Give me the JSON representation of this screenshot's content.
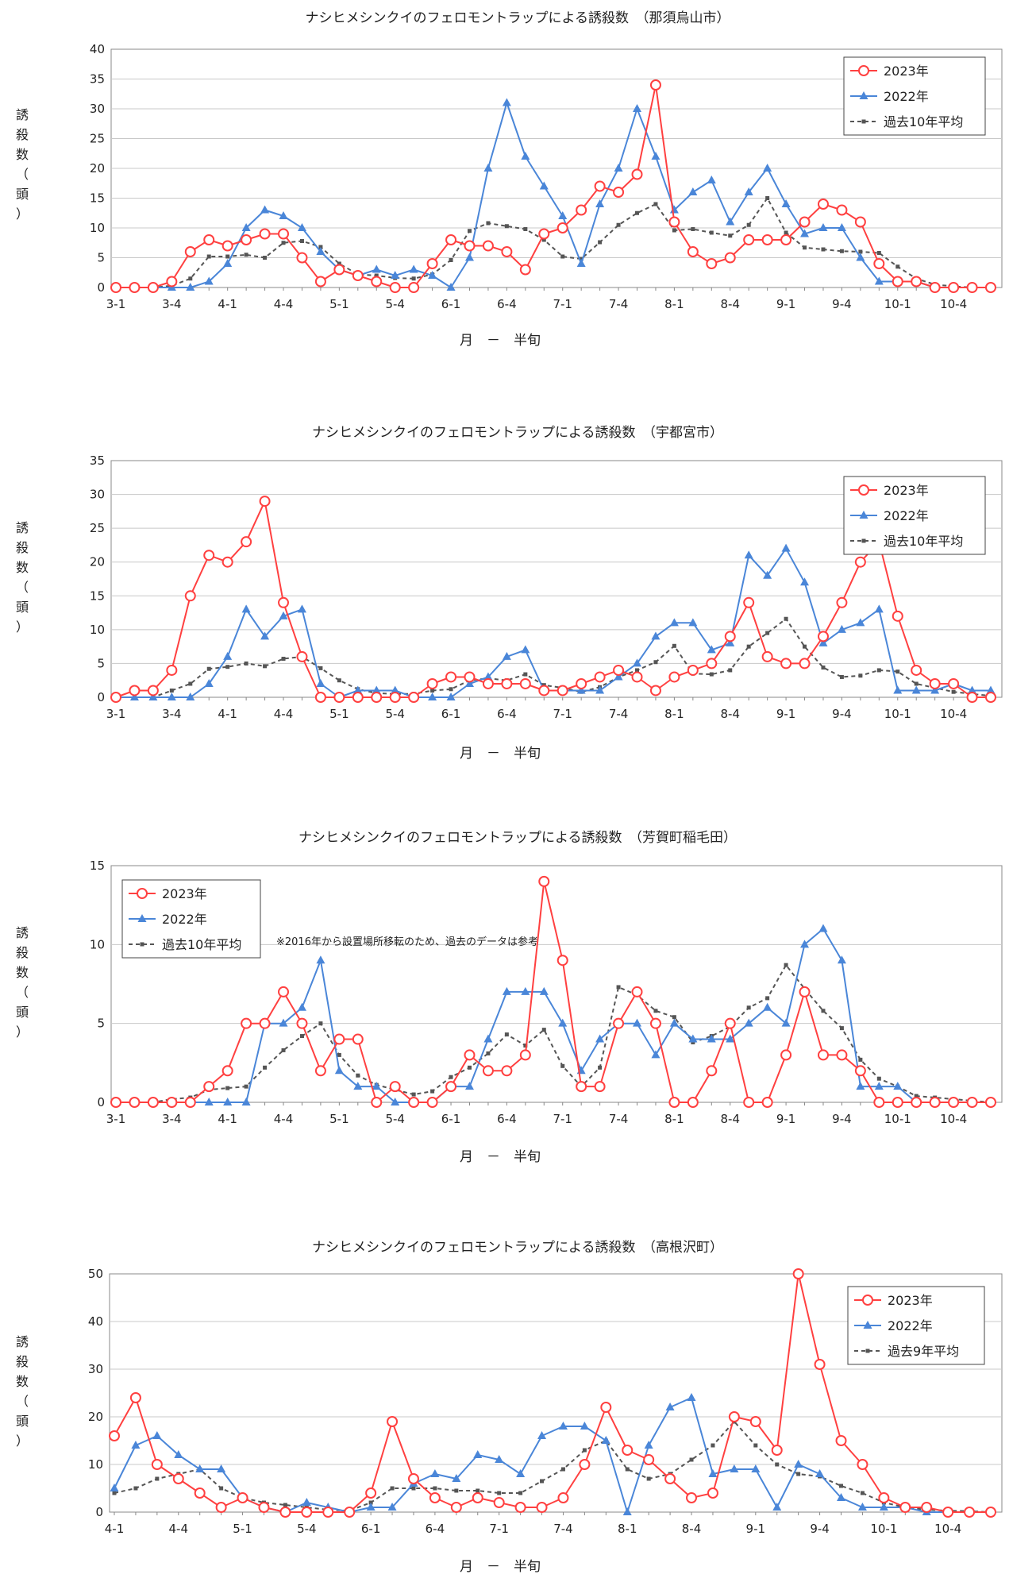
{
  "colors": {
    "s2023": "#ff4040",
    "s2022": "#4a86d8",
    "savg": "#555555",
    "grid": "#c8c8c8",
    "axis": "#888888"
  },
  "chart_data": [
    {
      "type": "line",
      "title": "ナシヒメシンクイのフェロモントラップによる誘殺数　（那須烏山市）",
      "xlabel": "月　－　半旬",
      "ylabel": [
        "誘",
        "殺",
        "数",
        "（",
        "頭",
        "）"
      ],
      "ylim": [
        0,
        40
      ],
      "yticks": [
        0,
        5,
        10,
        15,
        20,
        25,
        30,
        35,
        40
      ],
      "x_count": 48,
      "x_labels": [
        {
          "i": 0,
          "t": "3-1"
        },
        {
          "i": 3,
          "t": "3-4"
        },
        {
          "i": 6,
          "t": "4-1"
        },
        {
          "i": 9,
          "t": "4-4"
        },
        {
          "i": 12,
          "t": "5-1"
        },
        {
          "i": 15,
          "t": "5-4"
        },
        {
          "i": 18,
          "t": "6-1"
        },
        {
          "i": 21,
          "t": "6-4"
        },
        {
          "i": 24,
          "t": "7-1"
        },
        {
          "i": 27,
          "t": "7-4"
        },
        {
          "i": 30,
          "t": "8-1"
        },
        {
          "i": 33,
          "t": "8-4"
        },
        {
          "i": 36,
          "t": "9-1"
        },
        {
          "i": 39,
          "t": "9-4"
        },
        {
          "i": 42,
          "t": "10-1"
        },
        {
          "i": 45,
          "t": "10-4"
        }
      ],
      "legend": {
        "position": "top-right",
        "labels": [
          "2023年",
          "2022年",
          "過去10年平均"
        ]
      },
      "series": [
        {
          "name": "2023年",
          "key": "s2023",
          "marker": "circle",
          "values": [
            0,
            0,
            0,
            1,
            6,
            8,
            7,
            8,
            9,
            9,
            5,
            1,
            3,
            2,
            1,
            0,
            0,
            4,
            8,
            7,
            7,
            6,
            3,
            9,
            10,
            13,
            17,
            16,
            19,
            34,
            11,
            6,
            4,
            5,
            8,
            8,
            8,
            11,
            14,
            13,
            11,
            4,
            1,
            1,
            0,
            0,
            0,
            0
          ]
        },
        {
          "name": "2022年",
          "key": "s2022",
          "marker": "triangle",
          "values": [
            0,
            0,
            0,
            0,
            0,
            1,
            4,
            10,
            13,
            12,
            10,
            6,
            3,
            2,
            3,
            2,
            3,
            2,
            0,
            5,
            20,
            31,
            22,
            17,
            12,
            4,
            14,
            20,
            30,
            22,
            13,
            16,
            18,
            11,
            16,
            20,
            14,
            9,
            10,
            10,
            5,
            1,
            1,
            1,
            0,
            0,
            0,
            0
          ]
        },
        {
          "name": "過去10年平均",
          "key": "savg",
          "marker": "square",
          "values": [
            0,
            0,
            0,
            0.3,
            1.5,
            5.2,
            5.2,
            5.5,
            5,
            7.5,
            7.8,
            6.8,
            4,
            2.2,
            2,
            1.6,
            1.5,
            2.2,
            4.6,
            9.5,
            10.8,
            10.3,
            9.8,
            8,
            5.2,
            4.8,
            7.6,
            10.5,
            12.5,
            14,
            9.6,
            9.8,
            9.2,
            8.7,
            10.5,
            15,
            9.2,
            6.7,
            6.4,
            6.1,
            6,
            5.8,
            3.5,
            1.5,
            0.5,
            0.2,
            0,
            0
          ]
        }
      ]
    },
    {
      "type": "line",
      "title": "ナシヒメシンクイのフェロモントラップによる誘殺数　（宇都宮市）",
      "xlabel": "月　－　半旬",
      "ylabel": [
        "誘",
        "殺",
        "数",
        "（",
        "頭",
        "）"
      ],
      "ylim": [
        0,
        35
      ],
      "yticks": [
        0,
        5,
        10,
        15,
        20,
        25,
        30,
        35
      ],
      "x_count": 48,
      "x_labels": [
        {
          "i": 0,
          "t": "3-1"
        },
        {
          "i": 3,
          "t": "3-4"
        },
        {
          "i": 6,
          "t": "4-1"
        },
        {
          "i": 9,
          "t": "4-4"
        },
        {
          "i": 12,
          "t": "5-1"
        },
        {
          "i": 15,
          "t": "5-4"
        },
        {
          "i": 18,
          "t": "6-1"
        },
        {
          "i": 21,
          "t": "6-4"
        },
        {
          "i": 24,
          "t": "7-1"
        },
        {
          "i": 27,
          "t": "7-4"
        },
        {
          "i": 30,
          "t": "8-1"
        },
        {
          "i": 33,
          "t": "8-4"
        },
        {
          "i": 36,
          "t": "9-1"
        },
        {
          "i": 39,
          "t": "9-4"
        },
        {
          "i": 42,
          "t": "10-1"
        },
        {
          "i": 45,
          "t": "10-4"
        }
      ],
      "legend": {
        "position": "top-right",
        "labels": [
          "2023年",
          "2022年",
          "過去10年平均"
        ]
      },
      "series": [
        {
          "name": "2023年",
          "key": "s2023",
          "marker": "circle",
          "values": [
            0,
            1,
            1,
            4,
            15,
            21,
            20,
            23,
            29,
            14,
            6,
            0,
            0,
            0,
            0,
            0,
            0,
            2,
            3,
            3,
            2,
            2,
            2,
            1,
            1,
            2,
            3,
            4,
            3,
            1,
            3,
            4,
            5,
            9,
            14,
            6,
            5,
            5,
            9,
            14,
            20,
            23,
            12,
            4,
            2,
            2,
            0,
            0
          ]
        },
        {
          "name": "2022年",
          "key": "s2022",
          "marker": "triangle",
          "values": [
            0,
            0,
            0,
            0,
            0,
            2,
            6,
            13,
            9,
            12,
            13,
            2,
            0,
            1,
            1,
            1,
            0,
            0,
            0,
            2,
            3,
            6,
            7,
            1,
            1,
            1,
            1,
            3,
            5,
            9,
            11,
            11,
            7,
            8,
            21,
            18,
            22,
            17,
            8,
            10,
            11,
            13,
            1,
            1,
            1,
            2,
            1,
            1
          ]
        },
        {
          "name": "過去10年平均",
          "key": "savg",
          "marker": "square",
          "values": [
            0,
            0,
            0,
            1,
            2,
            4.2,
            4.5,
            5,
            4.6,
            5.7,
            6,
            4.3,
            2.5,
            1.2,
            0.6,
            0.5,
            0.5,
            1,
            1.2,
            2.5,
            2.8,
            2.5,
            3.4,
            1.8,
            1.4,
            0.8,
            1.5,
            3,
            4,
            5.2,
            7.6,
            3.5,
            3.4,
            4,
            7.5,
            9.5,
            11.6,
            7.5,
            4.4,
            3,
            3.2,
            4,
            3.8,
            2,
            1.4,
            0.8,
            0.5,
            0.2
          ]
        }
      ]
    },
    {
      "type": "line",
      "title": "ナシヒメシンクイのフェロモントラップによる誘殺数　（芳賀町稲毛田）",
      "xlabel": "月　－　半旬",
      "ylabel": [
        "誘",
        "殺",
        "数",
        "（",
        "頭",
        "）"
      ],
      "ylim": [
        0,
        15
      ],
      "yticks": [
        0,
        5,
        10,
        15
      ],
      "x_count": 48,
      "x_labels": [
        {
          "i": 0,
          "t": "3-1"
        },
        {
          "i": 3,
          "t": "3-4"
        },
        {
          "i": 6,
          "t": "4-1"
        },
        {
          "i": 9,
          "t": "4-4"
        },
        {
          "i": 12,
          "t": "5-1"
        },
        {
          "i": 15,
          "t": "5-4"
        },
        {
          "i": 18,
          "t": "6-1"
        },
        {
          "i": 21,
          "t": "6-4"
        },
        {
          "i": 24,
          "t": "7-1"
        },
        {
          "i": 27,
          "t": "7-4"
        },
        {
          "i": 30,
          "t": "8-1"
        },
        {
          "i": 33,
          "t": "8-4"
        },
        {
          "i": 36,
          "t": "9-1"
        },
        {
          "i": 39,
          "t": "9-4"
        },
        {
          "i": 42,
          "t": "10-1"
        },
        {
          "i": 45,
          "t": "10-4"
        }
      ],
      "legend": {
        "position": "top-left",
        "labels": [
          "2023年",
          "2022年",
          "過去10年平均"
        ]
      },
      "annotation": "※2016年から設置場所移転のため、過去のデータは参考",
      "series": [
        {
          "name": "2023年",
          "key": "s2023",
          "marker": "circle",
          "values": [
            0,
            0,
            0,
            0,
            0,
            1,
            2,
            5,
            5,
            7,
            5,
            2,
            4,
            4,
            0,
            1,
            0,
            0,
            1,
            3,
            2,
            2,
            3,
            14,
            9,
            1,
            1,
            5,
            7,
            5,
            0,
            0,
            2,
            5,
            0,
            0,
            3,
            7,
            3,
            3,
            2,
            0,
            0,
            0,
            0,
            0,
            0,
            0
          ]
        },
        {
          "name": "2022年",
          "key": "s2022",
          "marker": "triangle",
          "values": [
            0,
            0,
            0,
            0,
            0,
            0,
            0,
            0,
            5,
            5,
            6,
            9,
            2,
            1,
            1,
            0,
            0,
            0,
            1,
            1,
            4,
            7,
            7,
            7,
            5,
            2,
            4,
            5,
            5,
            3,
            5,
            4,
            4,
            4,
            5,
            6,
            5,
            10,
            11,
            9,
            1,
            1,
            1,
            0,
            0,
            0,
            0,
            0
          ]
        },
        {
          "name": "過去10年平均",
          "key": "savg",
          "marker": "square",
          "values": [
            0,
            0,
            0,
            0.2,
            0.3,
            0.8,
            0.9,
            1,
            2.2,
            3.3,
            4.2,
            5,
            3,
            1.7,
            1.1,
            0.8,
            0.5,
            0.7,
            1.6,
            2.2,
            3.1,
            4.3,
            3.6,
            4.6,
            2.3,
            1,
            2.2,
            7.3,
            6.8,
            5.8,
            5.4,
            3.8,
            4.2,
            4.8,
            6,
            6.6,
            8.7,
            7.2,
            5.8,
            4.7,
            2.7,
            1.5,
            1,
            0.4,
            0.3,
            0.2,
            0.1,
            0
          ]
        }
      ]
    },
    {
      "type": "line",
      "title": "ナシヒメシンクイのフェロモントラップによる誘殺数　（高根沢町）",
      "xlabel": "月　－　半旬",
      "ylabel": [
        "誘",
        "殺",
        "数",
        "（",
        "頭",
        "）"
      ],
      "ylim": [
        0,
        50
      ],
      "yticks": [
        0,
        10,
        20,
        30,
        40,
        50
      ],
      "x_count": 42,
      "x_labels": [
        {
          "i": 0,
          "t": "4-1"
        },
        {
          "i": 3,
          "t": "4-4"
        },
        {
          "i": 6,
          "t": "5-1"
        },
        {
          "i": 9,
          "t": "5-4"
        },
        {
          "i": 12,
          "t": "6-1"
        },
        {
          "i": 15,
          "t": "6-4"
        },
        {
          "i": 18,
          "t": "7-1"
        },
        {
          "i": 21,
          "t": "7-4"
        },
        {
          "i": 24,
          "t": "8-1"
        },
        {
          "i": 27,
          "t": "8-4"
        },
        {
          "i": 30,
          "t": "9-1"
        },
        {
          "i": 33,
          "t": "9-4"
        },
        {
          "i": 36,
          "t": "10-1"
        },
        {
          "i": 39,
          "t": "10-4"
        }
      ],
      "legend": {
        "position": "top-right",
        "labels": [
          "2023年",
          "2022年",
          "過去9年平均"
        ]
      },
      "series": [
        {
          "name": "2023年",
          "key": "s2023",
          "marker": "circle",
          "values": [
            16,
            24,
            10,
            7,
            4,
            1,
            3,
            1,
            0,
            0,
            0,
            0,
            4,
            19,
            7,
            3,
            1,
            3,
            2,
            1,
            1,
            3,
            10,
            22,
            13,
            11,
            7,
            3,
            4,
            20,
            19,
            13,
            52,
            31,
            15,
            10,
            3,
            1,
            1,
            0,
            0,
            0
          ]
        },
        {
          "name": "2022年",
          "key": "s2022",
          "marker": "triangle",
          "values": [
            5,
            14,
            16,
            12,
            9,
            9,
            3,
            1,
            0,
            2,
            1,
            0,
            1,
            1,
            6,
            8,
            7,
            12,
            11,
            8,
            16,
            18,
            18,
            15,
            0,
            14,
            22,
            24,
            8,
            9,
            9,
            1,
            10,
            8,
            3,
            1,
            1,
            1,
            0,
            0,
            0,
            0
          ]
        },
        {
          "name": "過去9年平均",
          "key": "savg",
          "marker": "square",
          "values": [
            4,
            5,
            7,
            8,
            9,
            5,
            3,
            2,
            1.5,
            1,
            0.5,
            0.3,
            2,
            5,
            5,
            5,
            4.5,
            4.5,
            4,
            4,
            6.5,
            9,
            13,
            15,
            9,
            7,
            8,
            11,
            14,
            19,
            14,
            10,
            8,
            7.5,
            5.5,
            4,
            2,
            1,
            0.5,
            0.3,
            0.2,
            0
          ]
        }
      ]
    }
  ]
}
